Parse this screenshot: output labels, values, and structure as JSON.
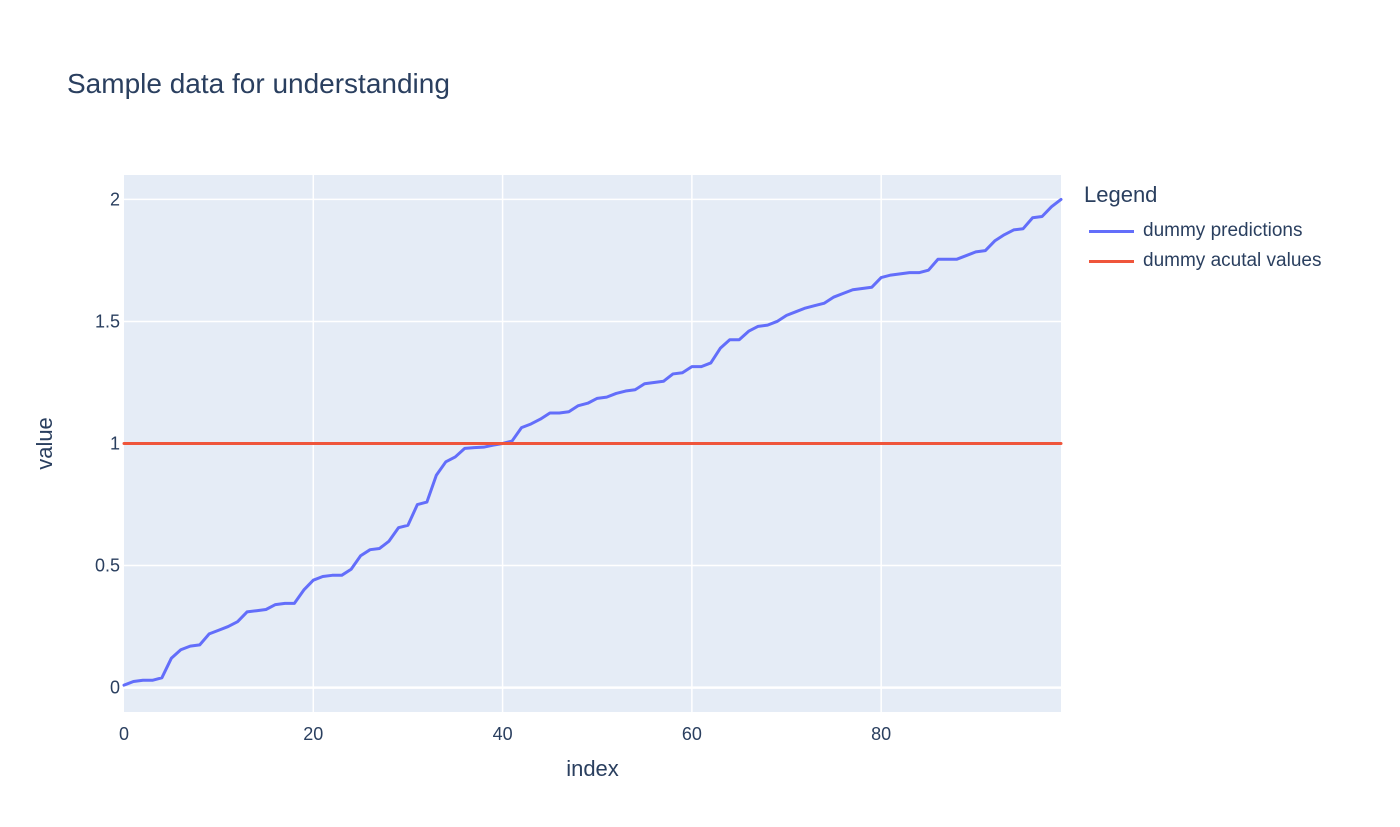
{
  "chart_data": {
    "type": "line",
    "title": "Sample data for understanding",
    "xlabel": "index",
    "ylabel": "value",
    "xlim": [
      0,
      99
    ],
    "ylim": [
      -0.1,
      2.1
    ],
    "x_ticks": [
      0,
      20,
      40,
      60,
      80
    ],
    "x_tick_labels": [
      "0",
      "20",
      "40",
      "60",
      "80"
    ],
    "y_ticks": [
      0,
      0.5,
      1,
      1.5,
      2
    ],
    "y_tick_labels": [
      "0",
      "0.5",
      "1",
      "1.5",
      "2"
    ],
    "grid": true,
    "legend": {
      "title": "Legend",
      "placement": "right"
    },
    "series": [
      {
        "name": "dummy predictions",
        "color": "#636efa",
        "x": [
          0,
          1,
          2,
          3,
          4,
          5,
          6,
          7,
          8,
          9,
          10,
          11,
          12,
          13,
          14,
          15,
          16,
          17,
          18,
          19,
          20,
          21,
          22,
          23,
          24,
          25,
          26,
          27,
          28,
          29,
          30,
          31,
          32,
          33,
          34,
          35,
          36,
          37,
          38,
          39,
          40,
          41,
          42,
          43,
          44,
          45,
          46,
          47,
          48,
          49,
          50,
          51,
          52,
          53,
          54,
          55,
          56,
          57,
          58,
          59,
          60,
          61,
          62,
          63,
          64,
          65,
          66,
          67,
          68,
          69,
          70,
          71,
          72,
          73,
          74,
          75,
          76,
          77,
          78,
          79,
          80,
          81,
          82,
          83,
          84,
          85,
          86,
          87,
          88,
          89,
          90,
          91,
          92,
          93,
          94,
          95,
          96,
          97,
          98,
          99
        ],
        "values": [
          0.01,
          0.025,
          0.03,
          0.03,
          0.04,
          0.12,
          0.155,
          0.17,
          0.175,
          0.22,
          0.235,
          0.25,
          0.27,
          0.31,
          0.315,
          0.32,
          0.34,
          0.345,
          0.345,
          0.4,
          0.44,
          0.455,
          0.46,
          0.46,
          0.485,
          0.54,
          0.565,
          0.57,
          0.6,
          0.655,
          0.665,
          0.75,
          0.76,
          0.87,
          0.925,
          0.945,
          0.98,
          0.983,
          0.985,
          0.993,
          1.0,
          1.01,
          1.065,
          1.08,
          1.1,
          1.125,
          1.125,
          1.13,
          1.155,
          1.165,
          1.185,
          1.19,
          1.205,
          1.215,
          1.22,
          1.245,
          1.25,
          1.255,
          1.285,
          1.29,
          1.315,
          1.315,
          1.33,
          1.39,
          1.425,
          1.425,
          1.46,
          1.48,
          1.485,
          1.5,
          1.525,
          1.54,
          1.555,
          1.565,
          1.575,
          1.6,
          1.615,
          1.63,
          1.635,
          1.64,
          1.68,
          1.69,
          1.695,
          1.7,
          1.7,
          1.71,
          1.755,
          1.755,
          1.755,
          1.77,
          1.785,
          1.79,
          1.83,
          1.855,
          1.875,
          1.88,
          1.925,
          1.93,
          1.97,
          2.0
        ]
      },
      {
        "name": "dummy acutal values",
        "color": "#ef553b",
        "x": [
          0,
          99
        ],
        "values": [
          1,
          1
        ]
      }
    ]
  },
  "style": {
    "plot_bg": "#e5ecf6",
    "grid_color": "#ffffff",
    "text_color": "#2a3f5f"
  }
}
